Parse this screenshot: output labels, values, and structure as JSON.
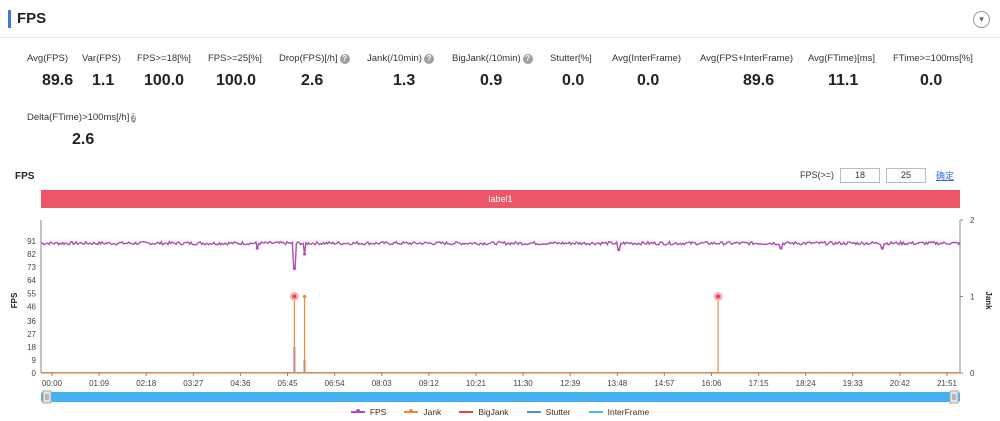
{
  "header": {
    "title": "FPS",
    "toggle_icon": "chevron-down-icon",
    "toggle_glyph": "▾"
  },
  "metrics": [
    {
      "label": "Avg(FPS)",
      "value": "89.6",
      "help": false
    },
    {
      "label": "Var(FPS)",
      "value": "1.1",
      "help": false
    },
    {
      "label": "FPS>=18[%]",
      "value": "100.0",
      "help": false
    },
    {
      "label": "FPS>=25[%]",
      "value": "100.0",
      "help": false
    },
    {
      "label": "Drop(FPS)[/h]",
      "value": "2.6",
      "help": true
    },
    {
      "label": "Jank(/10min)",
      "value": "1.3",
      "help": true
    },
    {
      "label": "BigJank(/10min)",
      "value": "0.9",
      "help": true
    },
    {
      "label": "Stutter[%]",
      "value": "0.0",
      "help": false
    },
    {
      "label": "Avg(InterFrame)",
      "value": "0.0",
      "help": false
    },
    {
      "label": "Avg(FPS+InterFrame)",
      "value": "89.6",
      "help": false
    },
    {
      "label": "Avg(FTime)[ms]",
      "value": "11.1",
      "help": false
    },
    {
      "label": "FTime>=100ms[%]",
      "value": "0.0",
      "help": false
    },
    {
      "label": "Delta(FTime)>100ms[/h]",
      "value": "2.6",
      "help": true
    }
  ],
  "chart_section": {
    "title": "FPS",
    "threshold_label": "FPS(>=)",
    "threshold_1": "18",
    "threshold_2": "25",
    "apply_label": "确定",
    "label_band": "label1"
  },
  "chart_data": {
    "type": "line",
    "x_ticks": [
      "00:00",
      "01:09",
      "02:18",
      "03:27",
      "04:36",
      "05:45",
      "06:54",
      "08:03",
      "09:12",
      "10:21",
      "11:30",
      "12:39",
      "13:48",
      "14:57",
      "16:06",
      "17:15",
      "18:24",
      "19:33",
      "20:42",
      "21:51"
    ],
    "x_range_minutes": [
      0,
      1360
    ],
    "left_axis": {
      "label": "FPS",
      "ticks": [
        0,
        9,
        18,
        27,
        36,
        46,
        55,
        64,
        73,
        82,
        91
      ],
      "range": [
        0,
        100
      ]
    },
    "right_axis": {
      "label": "Jank",
      "ticks": [
        0,
        1,
        2
      ],
      "range": [
        0,
        2
      ]
    },
    "series": [
      {
        "name": "FPS",
        "color": "#b04cb4",
        "baseline": 89.5,
        "dips": [
          [
            375,
            72
          ],
          [
            390,
            82
          ],
          [
            320,
            86
          ],
          [
            855,
            85
          ],
          [
            1095,
            86
          ],
          [
            1245,
            86
          ]
        ]
      },
      {
        "name": "Jank",
        "color": "#f0883a",
        "events": [
          [
            375,
            1
          ],
          [
            390,
            1
          ],
          [
            1002,
            1
          ]
        ]
      },
      {
        "name": "BigJank",
        "color": "#e8434d",
        "events": [
          [
            375,
            1
          ],
          [
            1002,
            1
          ]
        ]
      },
      {
        "name": "Stutter",
        "color": "#4a90d9",
        "events": []
      },
      {
        "name": "InterFrame",
        "color": "#3ec6d8",
        "events": []
      }
    ],
    "fps_spike_bars": [
      [
        375,
        18
      ],
      [
        390,
        9
      ]
    ]
  },
  "colors": {
    "accent": "#3a7bd5",
    "band": "#ee5566",
    "slider": "#45b0ef"
  }
}
